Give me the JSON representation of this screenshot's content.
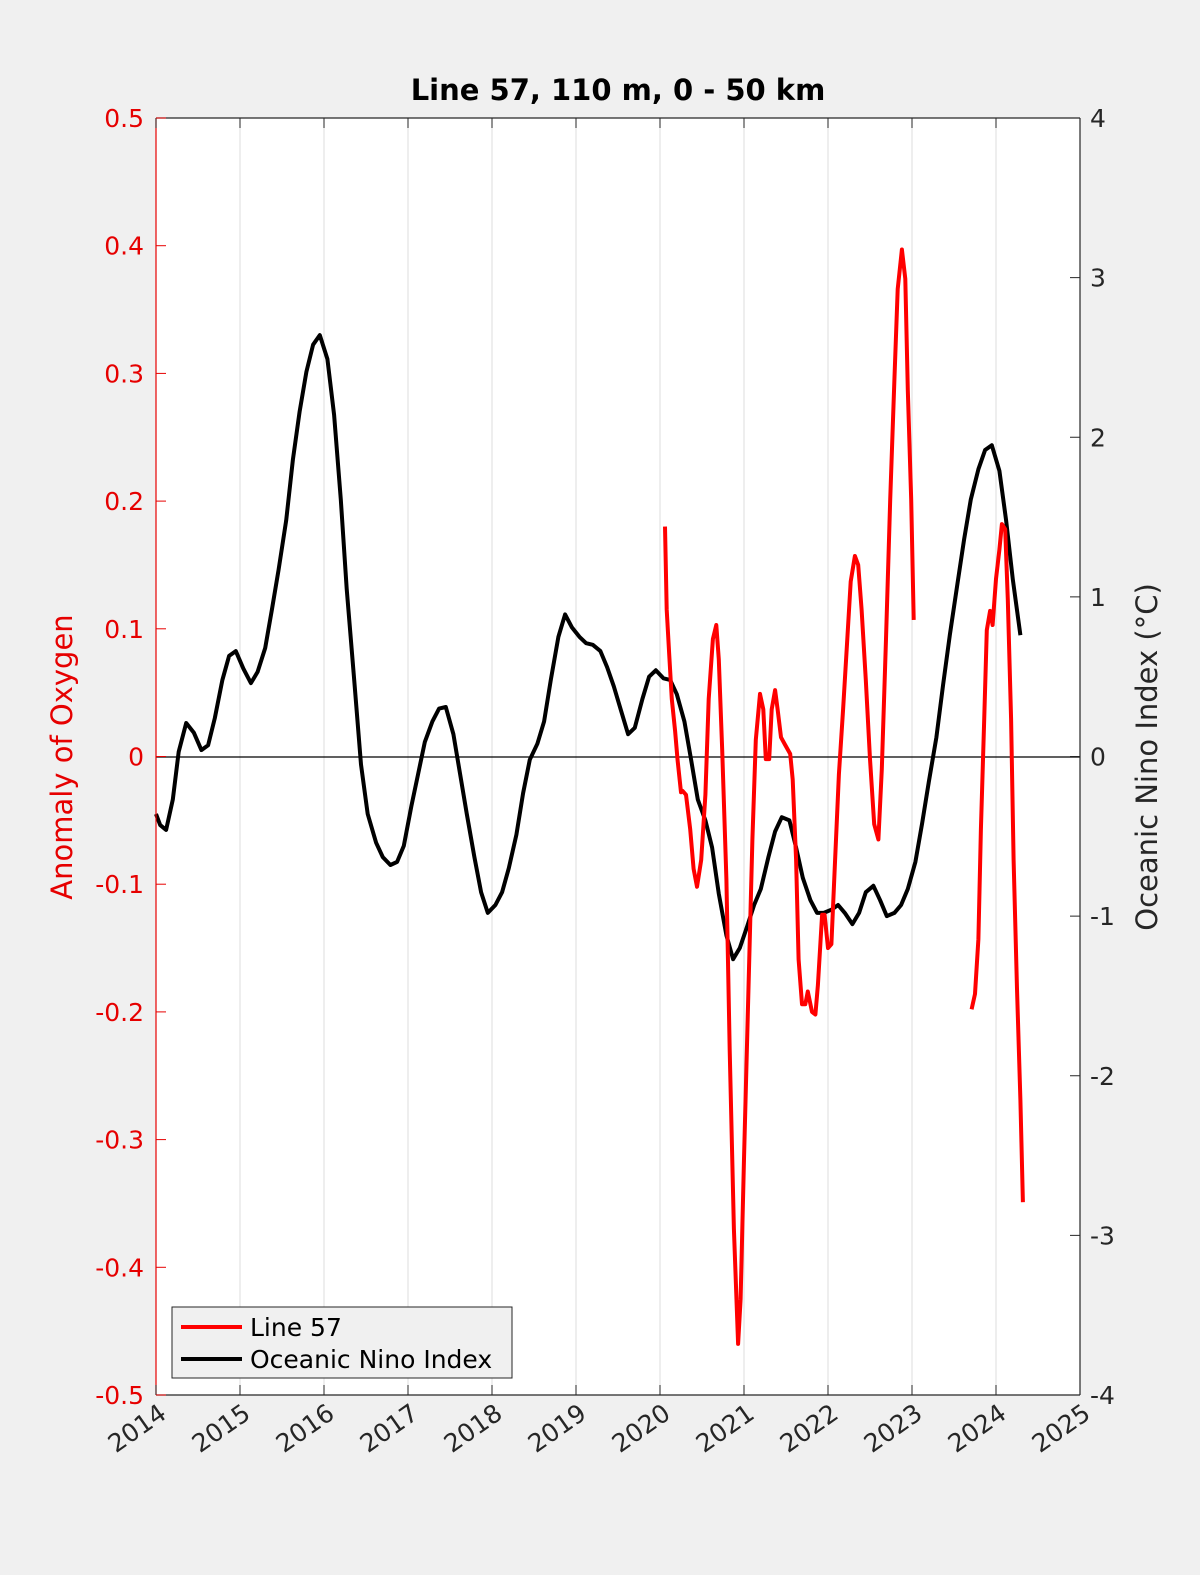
{
  "chart_data": {
    "type": "line",
    "title": "Line 57, 110 m, 0 - 50 km",
    "xlabel": "",
    "ylabel_left": "Anomaly of Oxygen",
    "ylabel_right": "Oceanic Nino Index (°C)",
    "xlim": [
      2014,
      2025
    ],
    "ylim_left": [
      -0.5,
      0.5
    ],
    "ylim_right": [
      -4,
      4
    ],
    "x_ticks": [
      "2014",
      "2015",
      "2016",
      "2017",
      "2018",
      "2019",
      "2020",
      "2021",
      "2022",
      "2023",
      "2024",
      "2025"
    ],
    "y_left_ticks": [
      "-0.5",
      "-0.4",
      "-0.3",
      "-0.2",
      "-0.1",
      "0",
      "0.1",
      "0.2",
      "0.3",
      "0.4",
      "0.5"
    ],
    "y_right_ticks": [
      "-4",
      "-3",
      "-2",
      "-1",
      "0",
      "1",
      "2",
      "3",
      "4"
    ],
    "grid": "vertical",
    "zero_line": true,
    "legend_position": "bottom-left",
    "colors": {
      "line57": "#ff0000",
      "oni": "#000000",
      "left_axis": "#e60000",
      "right_axis": "#262626",
      "background": "#f0f0f0",
      "plot_bg": "#ffffff",
      "grid": "#dcdcdc"
    },
    "series": [
      {
        "name": "Line 57",
        "axis": "left",
        "segments": [
          {
            "x": [
              2020.06,
              2020.08,
              2020.11,
              2020.14,
              2020.18,
              2020.21,
              2020.25,
              2020.27,
              2020.31,
              2020.36,
              2020.4,
              2020.44,
              2020.49,
              2020.54,
              2020.58,
              2020.63,
              2020.67,
              2020.7,
              2020.74,
              2020.79,
              2020.83,
              2020.88,
              2020.93,
              2020.96,
              2021.0,
              2021.05,
              2021.1,
              2021.14,
              2021.19,
              2021.23,
              2021.26,
              2021.3,
              2021.33,
              2021.37,
              2021.4,
              2021.44,
              2021.49,
              2021.55,
              2021.58,
              2021.62,
              2021.65,
              2021.69,
              2021.73,
              2021.76,
              2021.81,
              2021.85,
              2021.88,
              2021.93,
              2021.96,
              2022.0,
              2022.04,
              2022.08,
              2022.13,
              2022.18,
              2022.23,
              2022.27,
              2022.32,
              2022.36,
              2022.4,
              2022.45,
              2022.5,
              2022.55,
              2022.6,
              2022.64,
              2022.69,
              2022.74,
              2022.79,
              2022.83,
              2022.88,
              2022.92,
              2022.95,
              2022.99,
              2023.02
            ],
            "y": [
              0.18,
              0.115,
              0.08,
              0.045,
              0.02,
              -0.003,
              -0.028,
              -0.027,
              -0.03,
              -0.057,
              -0.088,
              -0.102,
              -0.081,
              -0.03,
              0.045,
              0.092,
              0.103,
              0.076,
              0.005,
              -0.096,
              -0.23,
              -0.37,
              -0.46,
              -0.425,
              -0.315,
              -0.19,
              -0.065,
              0.013,
              0.049,
              0.037,
              -0.002,
              -0.002,
              0.037,
              0.052,
              0.037,
              0.015,
              0.009,
              0.002,
              -0.018,
              -0.081,
              -0.159,
              -0.194,
              -0.194,
              -0.184,
              -0.2,
              -0.202,
              -0.179,
              -0.124,
              -0.124,
              -0.15,
              -0.147,
              -0.088,
              -0.014,
              0.037,
              0.092,
              0.137,
              0.157,
              0.15,
              0.115,
              0.06,
              -0.002,
              -0.053,
              -0.065,
              -0.01,
              0.092,
              0.201,
              0.295,
              0.366,
              0.397,
              0.374,
              0.287,
              0.201,
              0.107
            ]
          },
          {
            "x": [
              2023.71,
              2023.75,
              2023.79,
              2023.82,
              2023.86,
              2023.89,
              2023.93,
              2023.96,
              2024.0,
              2024.04,
              2024.07,
              2024.11,
              2024.14,
              2024.18,
              2024.21,
              2024.25,
              2024.29,
              2024.32
            ],
            "y": [
              -0.198,
              -0.186,
              -0.143,
              -0.057,
              0.029,
              0.099,
              0.114,
              0.103,
              0.139,
              0.162,
              0.182,
              0.178,
              0.123,
              0.029,
              -0.081,
              -0.182,
              -0.269,
              -0.349
            ]
          }
        ]
      },
      {
        "name": "Oceanic Nino Index",
        "axis": "right",
        "segments": [
          {
            "x": [
              2014.0,
              2014.05,
              2014.12,
              2014.2,
              2014.27,
              2014.36,
              2014.45,
              2014.54,
              2014.62,
              2014.7,
              2014.79,
              2014.87,
              2014.95,
              2015.04,
              2015.13,
              2015.21,
              2015.3,
              2015.38,
              2015.46,
              2015.55,
              2015.63,
              2015.71,
              2015.79,
              2015.87,
              2015.95,
              2016.04,
              2016.12,
              2016.2,
              2016.27,
              2016.36,
              2016.44,
              2016.52,
              2016.62,
              2016.7,
              2016.79,
              2016.87,
              2016.95,
              2017.04,
              2017.12,
              2017.2,
              2017.29,
              2017.37,
              2017.45,
              2017.54,
              2017.62,
              2017.7,
              2017.79,
              2017.87,
              2017.95,
              2018.04,
              2018.12,
              2018.2,
              2018.29,
              2018.37,
              2018.45,
              2018.54,
              2018.62,
              2018.7,
              2018.79,
              2018.87,
              2018.95,
              2019.04,
              2019.12,
              2019.2,
              2019.29,
              2019.37,
              2019.45,
              2019.54,
              2019.62,
              2019.7,
              2019.79,
              2019.87,
              2019.95,
              2020.04,
              2020.12,
              2020.2,
              2020.29,
              2020.37,
              2020.45,
              2020.54,
              2020.62,
              2020.7,
              2020.79,
              2020.87,
              2020.95,
              2021.04,
              2021.12,
              2021.2,
              2021.29,
              2021.37,
              2021.45,
              2021.54,
              2021.62,
              2021.7,
              2021.79,
              2021.87,
              2021.95,
              2022.04,
              2022.12,
              2022.2,
              2022.29,
              2022.37,
              2022.45,
              2022.54,
              2022.62,
              2022.7,
              2022.79,
              2022.87,
              2022.95,
              2023.04,
              2023.12,
              2023.2,
              2023.29,
              2023.37,
              2023.45,
              2023.54,
              2023.62,
              2023.7,
              2023.79,
              2023.87,
              2023.95,
              2024.04,
              2024.12,
              2024.2,
              2024.29
            ],
            "y": [
              -0.36,
              -0.43,
              -0.46,
              -0.27,
              0.03,
              0.21,
              0.15,
              0.04,
              0.07,
              0.24,
              0.48,
              0.63,
              0.66,
              0.55,
              0.46,
              0.53,
              0.68,
              0.92,
              1.17,
              1.48,
              1.86,
              2.16,
              2.41,
              2.58,
              2.64,
              2.49,
              2.14,
              1.61,
              1.05,
              0.48,
              -0.05,
              -0.36,
              -0.54,
              -0.63,
              -0.68,
              -0.66,
              -0.56,
              -0.31,
              -0.11,
              0.09,
              0.22,
              0.3,
              0.31,
              0.14,
              -0.11,
              -0.36,
              -0.63,
              -0.85,
              -0.98,
              -0.93,
              -0.85,
              -0.7,
              -0.49,
              -0.23,
              -0.02,
              0.08,
              0.22,
              0.48,
              0.75,
              0.89,
              0.81,
              0.75,
              0.71,
              0.7,
              0.66,
              0.56,
              0.44,
              0.28,
              0.14,
              0.18,
              0.36,
              0.5,
              0.54,
              0.49,
              0.48,
              0.39,
              0.22,
              -0.02,
              -0.27,
              -0.4,
              -0.57,
              -0.86,
              -1.12,
              -1.27,
              -1.2,
              -1.06,
              -0.93,
              -0.83,
              -0.63,
              -0.47,
              -0.38,
              -0.4,
              -0.57,
              -0.76,
              -0.9,
              -0.98,
              -0.98,
              -0.96,
              -0.93,
              -0.98,
              -1.05,
              -0.98,
              -0.85,
              -0.81,
              -0.9,
              -1.0,
              -0.98,
              -0.93,
              -0.83,
              -0.66,
              -0.42,
              -0.16,
              0.12,
              0.45,
              0.76,
              1.08,
              1.36,
              1.61,
              1.8,
              1.92,
              1.95,
              1.79,
              1.48,
              1.11,
              0.76
            ]
          }
        ]
      }
    ]
  }
}
